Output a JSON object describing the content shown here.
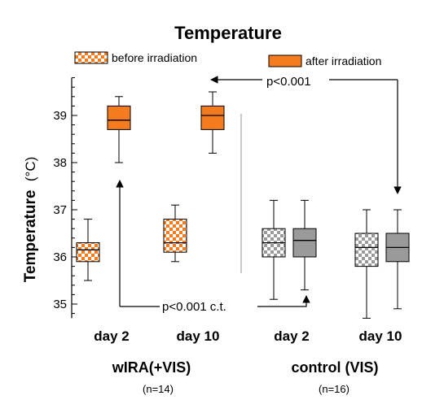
{
  "chart_data": {
    "type": "box",
    "title": "Temperature",
    "ylabel_main": "Temperature",
    "ylabel_unit": "(°C)",
    "ylim": [
      34.7,
      39.8
    ],
    "yticks": [
      35,
      36,
      37,
      38,
      39
    ],
    "grid": false,
    "legend": {
      "placement": "top",
      "entries": [
        {
          "name": "before irradiation",
          "pattern": "checker",
          "color": "#F47B20"
        },
        {
          "name": "after irradiation",
          "pattern": "solid",
          "color": "#F47B20"
        }
      ]
    },
    "categories": [
      "day 2",
      "day 10",
      "day 2",
      "day 10"
    ],
    "groups": [
      {
        "name": "wIRA(+VIS)",
        "n": "(n=14)",
        "color": "#F47B20"
      },
      {
        "name": "control (VIS)",
        "n": "(n=16)",
        "color": "#9A9A9A"
      }
    ],
    "boxes": [
      {
        "group": 0,
        "category": 0,
        "series": "before irradiation",
        "min": 35.5,
        "q1": 35.9,
        "median": 36.15,
        "q3": 36.3,
        "max": 36.8
      },
      {
        "group": 0,
        "category": 0,
        "series": "after irradiation",
        "min": 38.0,
        "q1": 38.7,
        "median": 38.9,
        "q3": 39.2,
        "max": 39.4
      },
      {
        "group": 0,
        "category": 1,
        "series": "before irradiation",
        "min": 35.9,
        "q1": 36.1,
        "median": 36.3,
        "q3": 36.8,
        "max": 37.1
      },
      {
        "group": 0,
        "category": 1,
        "series": "after irradiation",
        "min": 38.2,
        "q1": 38.7,
        "median": 39.0,
        "q3": 39.2,
        "max": 39.5
      },
      {
        "group": 1,
        "category": 2,
        "series": "before irradiation",
        "min": 35.1,
        "q1": 36.0,
        "median": 36.3,
        "q3": 36.6,
        "max": 37.2
      },
      {
        "group": 1,
        "category": 2,
        "series": "after irradiation",
        "min": 35.3,
        "q1": 36.0,
        "median": 36.35,
        "q3": 36.6,
        "max": 37.2
      },
      {
        "group": 1,
        "category": 3,
        "series": "before irradiation",
        "min": 34.7,
        "q1": 35.8,
        "median": 36.2,
        "q3": 36.5,
        "max": 37.0
      },
      {
        "group": 1,
        "category": 3,
        "series": "after irradiation",
        "min": 34.9,
        "q1": 35.9,
        "median": 36.2,
        "q3": 36.5,
        "max": 37.0
      }
    ],
    "annotations": [
      {
        "text": "p<0.001",
        "between": "after irradiation: wIRA(+VIS) day 10 vs control (VIS) day 10"
      },
      {
        "text": "p<0.001 c.t.",
        "between": "wIRA(+VIS) day 2 vs control (VIS) day 2"
      }
    ]
  }
}
